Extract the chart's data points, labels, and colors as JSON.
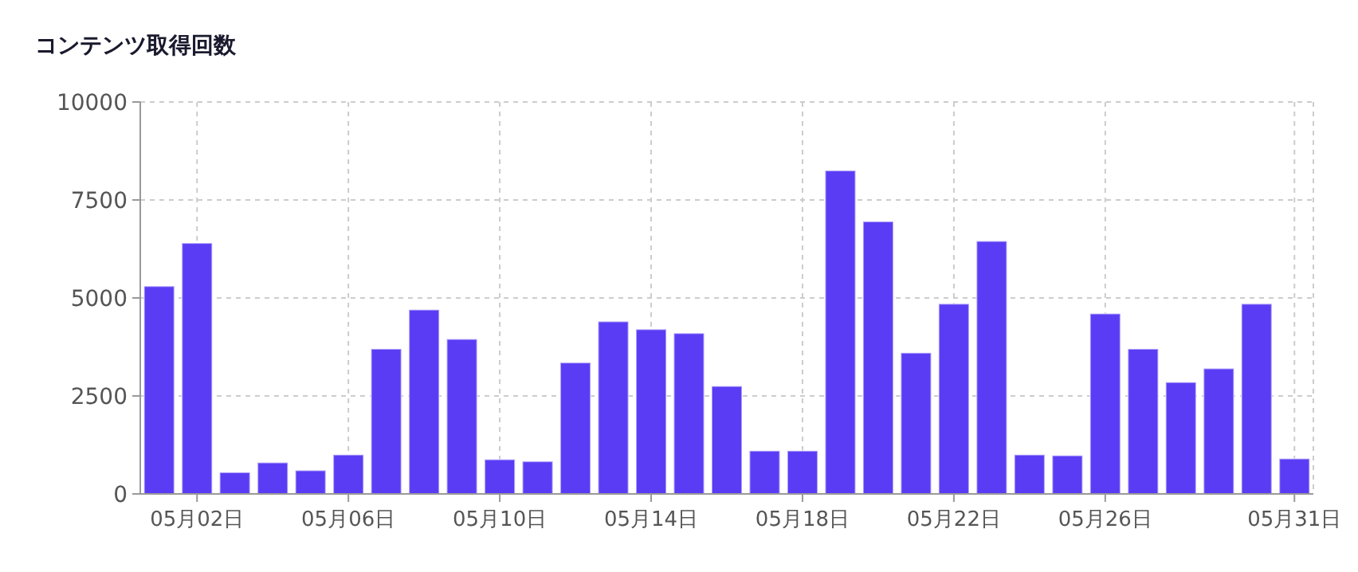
{
  "chart_data": {
    "type": "bar",
    "title": "コンテンツ取得回数",
    "categories": [
      null,
      "05月02日",
      null,
      null,
      null,
      "05月06日",
      null,
      null,
      null,
      "05月10日",
      null,
      null,
      null,
      "05月14日",
      null,
      null,
      null,
      "05月18日",
      null,
      null,
      null,
      "05月22日",
      null,
      null,
      null,
      "05月26日",
      null,
      null,
      null,
      null,
      "05月31日"
    ],
    "values": [
      5300,
      6400,
      550,
      800,
      600,
      1000,
      3700,
      4700,
      3950,
      880,
      830,
      3350,
      4400,
      4200,
      4100,
      2750,
      1100,
      1100,
      8250,
      6950,
      3600,
      4850,
      6450,
      1000,
      980,
      4600,
      3700,
      2850,
      3200,
      4850,
      900
    ],
    "color": "#5b3cf5",
    "ylim": [
      0,
      10000
    ],
    "yticks": [
      0,
      2500,
      5000,
      7500,
      10000
    ],
    "grid": true
  }
}
